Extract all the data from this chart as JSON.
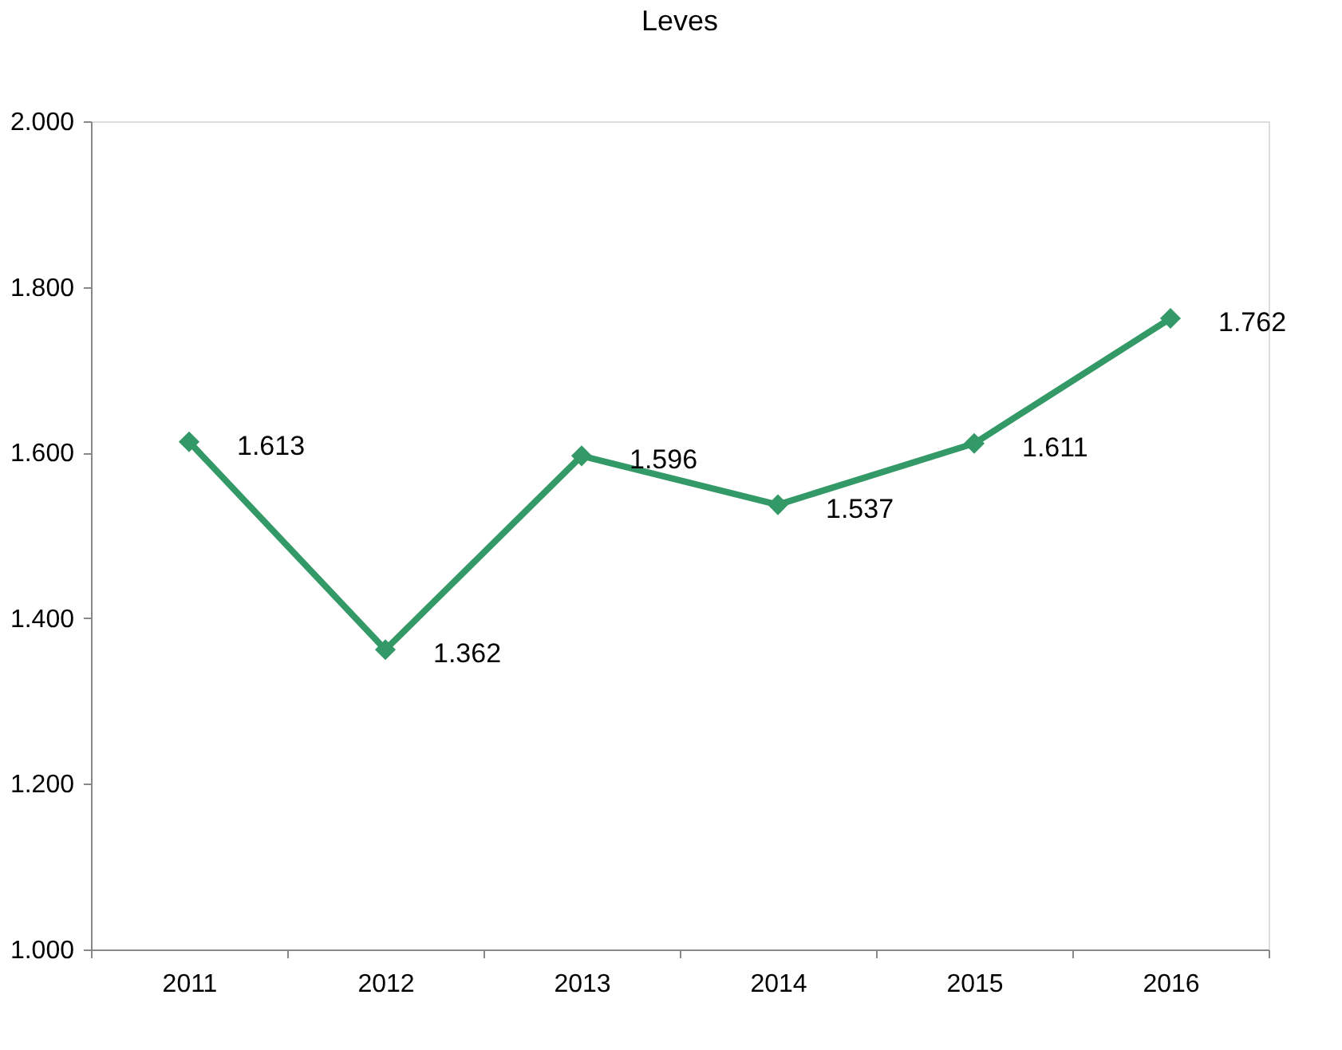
{
  "chart_data": {
    "type": "line",
    "title": "Leves",
    "categories": [
      "2011",
      "2012",
      "2013",
      "2014",
      "2015",
      "2016"
    ],
    "values": [
      1613,
      1362,
      1596,
      1537,
      1611,
      1762
    ],
    "value_labels": [
      "1.613",
      "1.362",
      "1.596",
      "1.537",
      "1.611",
      "1.762"
    ],
    "color": "#339966",
    "ylim": [
      1000,
      2000
    ],
    "yticks": [
      {
        "value": 1000,
        "label": "1.000"
      },
      {
        "value": 1200,
        "label": "1.200"
      },
      {
        "value": 1400,
        "label": "1.400"
      },
      {
        "value": 1600,
        "label": "1.600"
      },
      {
        "value": 1800,
        "label": "1.800"
      },
      {
        "value": 2000,
        "label": "2.000"
      }
    ],
    "marker": "diamond",
    "line_style": "solid"
  }
}
